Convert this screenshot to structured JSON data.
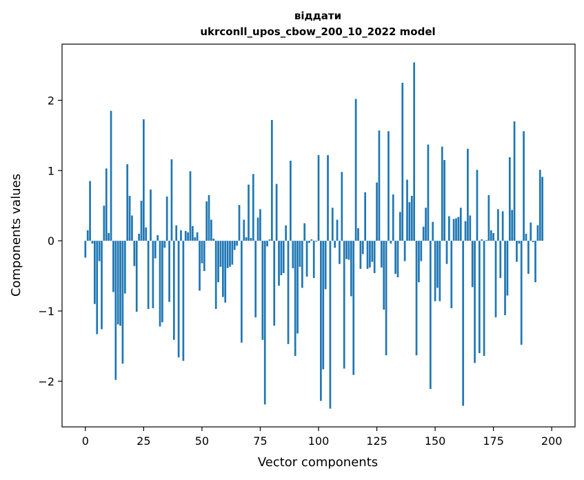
{
  "chart_data": {
    "type": "bar",
    "title_line1": "віддати",
    "title_line2": "ukrconll_upos_cbow_200_10_2022 model",
    "xlabel": "Vector components",
    "ylabel": "Components values",
    "xlim": [
      -10,
      210
    ],
    "ylim": [
      -2.65,
      2.8
    ],
    "xticks": [
      0,
      25,
      50,
      75,
      100,
      125,
      150,
      175,
      200
    ],
    "xtick_labels": [
      "0",
      "25",
      "50",
      "75",
      "100",
      "125",
      "150",
      "175",
      "200"
    ],
    "yticks": [
      -2,
      -1,
      0,
      1,
      2
    ],
    "ytick_labels": [
      "−2",
      "−1",
      "0",
      "1",
      "2"
    ],
    "bar_color": "#1f77b4",
    "values": [
      -0.24,
      0.15,
      0.85,
      -0.04,
      -0.9,
      -1.33,
      -0.29,
      -1.26,
      0.5,
      1.03,
      0.11,
      1.85,
      -0.73,
      -1.98,
      -1.19,
      -1.21,
      -1.75,
      -0.75,
      1.09,
      0.64,
      0.36,
      -0.36,
      -1.01,
      0.1,
      0.57,
      1.73,
      0.19,
      -0.97,
      0.73,
      -0.96,
      -0.25,
      0.08,
      -1.22,
      -1.16,
      -0.1,
      0.63,
      -0.87,
      1.16,
      -1.41,
      0.22,
      -1.66,
      0.15,
      -1.71,
      0.14,
      0.12,
      0.99,
      0.21,
      0.05,
      0.12,
      -0.71,
      -0.32,
      -0.43,
      0.56,
      0.65,
      0.3,
      0.03,
      -0.97,
      -0.59,
      -0.37,
      -0.8,
      -0.88,
      -0.39,
      -0.37,
      -0.34,
      -0.13,
      -0.07,
      0.51,
      -1.45,
      0.3,
      0.05,
      0.8,
      0.04,
      0.95,
      -1.09,
      0.33,
      0.45,
      -1.41,
      -2.33,
      -0.08,
      0.02,
      1.72,
      -1.21,
      0.81,
      -0.64,
      -0.49,
      -0.46,
      0.22,
      -1.47,
      1.14,
      -0.39,
      -1.64,
      -1.32,
      -0.37,
      -0.67,
      0.25,
      -0.51,
      -0.03,
      0.02,
      -0.53,
      -0.01,
      1.22,
      -2.28,
      -1.83,
      -0.69,
      1.22,
      -2.39,
      0.47,
      -0.1,
      0.3,
      -0.33,
      0.98,
      -1.82,
      -0.26,
      -0.27,
      -0.79,
      -1.91,
      2.02,
      0.18,
      -0.4,
      -0.19,
      0.69,
      -0.4,
      -0.38,
      -0.3,
      -0.46,
      0.83,
      1.57,
      -0.38,
      -0.98,
      -1.63,
      1.56,
      -0.04,
      0.66,
      -0.47,
      -0.52,
      0.41,
      2.25,
      -0.29,
      0.87,
      0.55,
      0.64,
      2.54,
      -1.63,
      -0.59,
      -0.29,
      0.2,
      0.47,
      1.37,
      -2.11,
      0.27,
      -0.86,
      -0.67,
      -0.86,
      1.34,
      1.15,
      -0.33,
      0.35,
      -0.96,
      0.31,
      0.32,
      0.34,
      0.47,
      -2.35,
      0.28,
      1.31,
      0.36,
      -0.66,
      -1.74,
      1.01,
      -1.6,
      0.02,
      -1.64,
      0.01,
      0.65,
      0.15,
      0.11,
      -1.09,
      0.45,
      -0.53,
      0.42,
      -1.06,
      -0.78,
      1.19,
      0.44,
      1.7,
      -0.3,
      -0.04,
      -1.48,
      1.56,
      0.1,
      -0.47,
      0.26,
      -0.02,
      -0.59,
      0.22,
      1.01,
      0.91
    ]
  }
}
